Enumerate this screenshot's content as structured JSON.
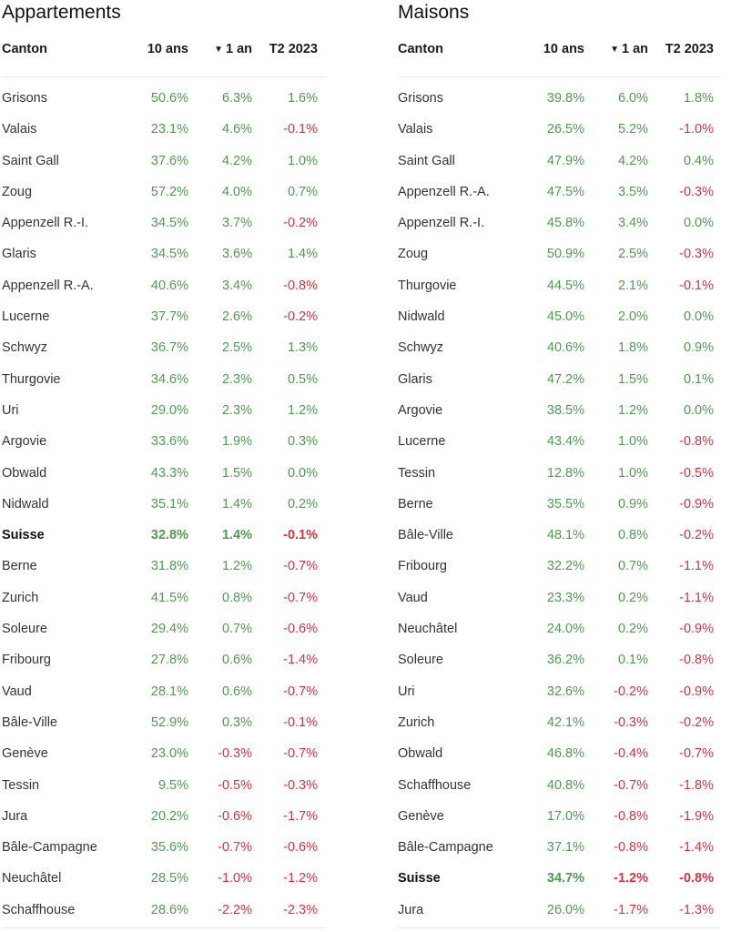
{
  "left": {
    "title": "Appartements",
    "headers": {
      "canton": "Canton",
      "ten": "10 ans",
      "sort_icon": "▼",
      "one": "1 an",
      "t2": "T2 2023"
    },
    "rows": [
      {
        "name": "Grisons",
        "ten": "50.6%",
        "one": "6.3%",
        "t2": "1.6%"
      },
      {
        "name": "Valais",
        "ten": "23.1%",
        "one": "4.6%",
        "t2": "-0.1%"
      },
      {
        "name": "Saint Gall",
        "ten": "37.6%",
        "one": "4.2%",
        "t2": "1.0%"
      },
      {
        "name": "Zoug",
        "ten": "57.2%",
        "one": "4.0%",
        "t2": "0.7%"
      },
      {
        "name": "Appenzell R.-I.",
        "ten": "34.5%",
        "one": "3.7%",
        "t2": "-0.2%"
      },
      {
        "name": "Glaris",
        "ten": "34.5%",
        "one": "3.6%",
        "t2": "1.4%"
      },
      {
        "name": "Appenzell R.-A.",
        "ten": "40.6%",
        "one": "3.4%",
        "t2": "-0.8%"
      },
      {
        "name": "Lucerne",
        "ten": "37.7%",
        "one": "2.6%",
        "t2": "-0.2%"
      },
      {
        "name": "Schwyz",
        "ten": "36.7%",
        "one": "2.5%",
        "t2": "1.3%"
      },
      {
        "name": "Thurgovie",
        "ten": "34.6%",
        "one": "2.3%",
        "t2": "0.5%"
      },
      {
        "name": "Uri",
        "ten": "29.0%",
        "one": "2.3%",
        "t2": "1.2%"
      },
      {
        "name": "Argovie",
        "ten": "33.6%",
        "one": "1.9%",
        "t2": "0.3%"
      },
      {
        "name": "Obwald",
        "ten": "43.3%",
        "one": "1.5%",
        "t2": "0.0%"
      },
      {
        "name": "Nidwald",
        "ten": "35.1%",
        "one": "1.4%",
        "t2": "0.2%"
      },
      {
        "name": "Suisse",
        "ten": "32.8%",
        "one": "1.4%",
        "t2": "-0.1%",
        "bold": true
      },
      {
        "name": "Berne",
        "ten": "31.8%",
        "one": "1.2%",
        "t2": "-0.7%"
      },
      {
        "name": "Zurich",
        "ten": "41.5%",
        "one": "0.8%",
        "t2": "-0.7%"
      },
      {
        "name": "Soleure",
        "ten": "29.4%",
        "one": "0.7%",
        "t2": "-0.6%"
      },
      {
        "name": "Fribourg",
        "ten": "27.8%",
        "one": "0.6%",
        "t2": "-1.4%"
      },
      {
        "name": "Vaud",
        "ten": "28.1%",
        "one": "0.6%",
        "t2": "-0.7%"
      },
      {
        "name": "Bâle-Ville",
        "ten": "52.9%",
        "one": "0.3%",
        "t2": "-0.1%"
      },
      {
        "name": "Genève",
        "ten": "23.0%",
        "one": "-0.3%",
        "t2": "-0.7%"
      },
      {
        "name": "Tessin",
        "ten": "9.5%",
        "one": "-0.5%",
        "t2": "-0.3%"
      },
      {
        "name": "Jura",
        "ten": "20.2%",
        "one": "-0.6%",
        "t2": "-1.7%"
      },
      {
        "name": "Bâle-Campagne",
        "ten": "35.6%",
        "one": "-0.7%",
        "t2": "-0.6%"
      },
      {
        "name": "Neuchâtel",
        "ten": "28.5%",
        "one": "-1.0%",
        "t2": "-1.2%"
      },
      {
        "name": "Schaffhouse",
        "ten": "28.6%",
        "one": "-2.2%",
        "t2": "-2.3%"
      }
    ]
  },
  "right": {
    "title": "Maisons",
    "headers": {
      "canton": "Canton",
      "ten": "10 ans",
      "sort_icon": "▼",
      "one": "1 an",
      "t2": "T2 2023"
    },
    "rows": [
      {
        "name": "Grisons",
        "ten": "39.8%",
        "one": "6.0%",
        "t2": "1.8%"
      },
      {
        "name": "Valais",
        "ten": "26.5%",
        "one": "5.2%",
        "t2": "-1.0%"
      },
      {
        "name": "Saint Gall",
        "ten": "47.9%",
        "one": "4.2%",
        "t2": "0.4%"
      },
      {
        "name": "Appenzell R.-A.",
        "ten": "47.5%",
        "one": "3.5%",
        "t2": "-0.3%"
      },
      {
        "name": "Appenzell R.-I.",
        "ten": "45.8%",
        "one": "3.4%",
        "t2": "0.0%"
      },
      {
        "name": "Zoug",
        "ten": "50.9%",
        "one": "2.5%",
        "t2": "-0.3%"
      },
      {
        "name": "Thurgovie",
        "ten": "44.5%",
        "one": "2.1%",
        "t2": "-0.1%"
      },
      {
        "name": "Nidwald",
        "ten": "45.0%",
        "one": "2.0%",
        "t2": "0.0%"
      },
      {
        "name": "Schwyz",
        "ten": "40.6%",
        "one": "1.8%",
        "t2": "0.9%"
      },
      {
        "name": "Glaris",
        "ten": "47.2%",
        "one": "1.5%",
        "t2": "0.1%"
      },
      {
        "name": "Argovie",
        "ten": "38.5%",
        "one": "1.2%",
        "t2": "0.0%"
      },
      {
        "name": "Lucerne",
        "ten": "43.4%",
        "one": "1.0%",
        "t2": "-0.8%"
      },
      {
        "name": "Tessin",
        "ten": "12.8%",
        "one": "1.0%",
        "t2": "-0.5%"
      },
      {
        "name": "Berne",
        "ten": "35.5%",
        "one": "0.9%",
        "t2": "-0.9%"
      },
      {
        "name": "Bâle-Ville",
        "ten": "48.1%",
        "one": "0.8%",
        "t2": "-0.2%"
      },
      {
        "name": "Fribourg",
        "ten": "32.2%",
        "one": "0.7%",
        "t2": "-1.1%"
      },
      {
        "name": "Vaud",
        "ten": "23.3%",
        "one": "0.2%",
        "t2": "-1.1%"
      },
      {
        "name": "Neuchâtel",
        "ten": "24.0%",
        "one": "0.2%",
        "t2": "-0.9%"
      },
      {
        "name": "Soleure",
        "ten": "36.2%",
        "one": "0.1%",
        "t2": "-0.8%"
      },
      {
        "name": "Uri",
        "ten": "32.6%",
        "one": "-0.2%",
        "t2": "-0.9%"
      },
      {
        "name": "Zurich",
        "ten": "42.1%",
        "one": "-0.3%",
        "t2": "-0.2%"
      },
      {
        "name": "Obwald",
        "ten": "46.8%",
        "one": "-0.4%",
        "t2": "-0.7%"
      },
      {
        "name": "Schaffhouse",
        "ten": "40.8%",
        "one": "-0.7%",
        "t2": "-1.8%"
      },
      {
        "name": "Genève",
        "ten": "17.0%",
        "one": "-0.8%",
        "t2": "-1.9%"
      },
      {
        "name": "Bâle-Campagne",
        "ten": "37.1%",
        "one": "-0.8%",
        "t2": "-1.4%"
      },
      {
        "name": "Suisse",
        "ten": "34.7%",
        "one": "-1.2%",
        "t2": "-0.8%",
        "bold": true
      },
      {
        "name": "Jura",
        "ten": "26.0%",
        "one": "-1.7%",
        "t2": "-1.3%"
      }
    ]
  },
  "colors": {
    "positive": "#4f9a4f",
    "negative": "#d8343f"
  }
}
